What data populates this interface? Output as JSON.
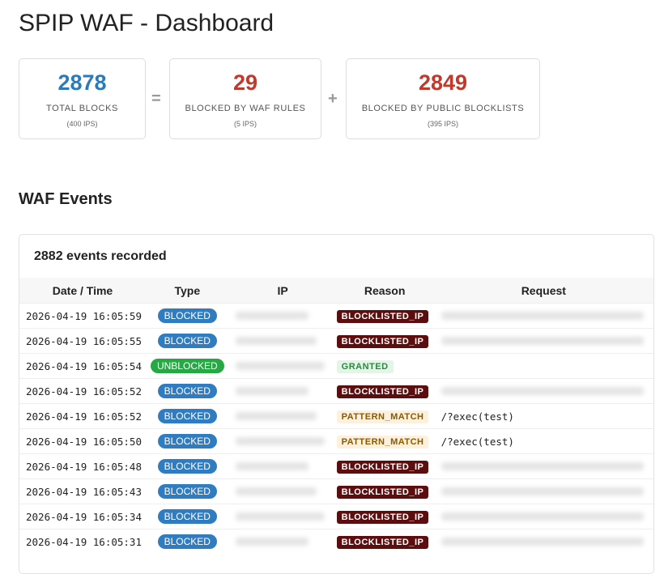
{
  "header": {
    "title": "SPIP WAF - Dashboard"
  },
  "stats": [
    {
      "value": 2878,
      "label": "TOTAL BLOCKS",
      "sub": "(400 IPS)",
      "color": "#2b7bb9"
    },
    {
      "value": 29,
      "label": "BLOCKED BY WAF RULES",
      "sub": "(5 IPS)",
      "color": "#c0392b"
    },
    {
      "value": 2849,
      "label": "BLOCKED BY PUBLIC BLOCKLISTS",
      "sub": "(395 IPS)",
      "color": "#c0392b"
    }
  ],
  "operators": [
    "=",
    "+"
  ],
  "events": {
    "title": "WAF Events",
    "count_label": "2882 events recorded",
    "columns": [
      "Date / Time",
      "Type",
      "IP",
      "Reason",
      "Request"
    ],
    "rows": [
      {
        "date": "2026-04-19 16:05:59",
        "type": {
          "text": "BLOCKED",
          "color": "#2f7dc0"
        },
        "reason": {
          "text": "BLOCKLISTED_IP",
          "bg": "#5c0d0d",
          "fg": "#ffffff"
        },
        "request": null
      },
      {
        "date": "2026-04-19 16:05:55",
        "type": {
          "text": "BLOCKED",
          "color": "#2f7dc0"
        },
        "reason": {
          "text": "BLOCKLISTED_IP",
          "bg": "#5c0d0d",
          "fg": "#ffffff"
        },
        "request": null
      },
      {
        "date": "2026-04-19 16:05:54",
        "type": {
          "text": "UNBLOCKED",
          "color": "#28a745"
        },
        "reason": {
          "text": "GRANTED",
          "bg": "#e2f5e6",
          "fg": "#2a8a3c"
        },
        "request": null
      },
      {
        "date": "2026-04-19 16:05:52",
        "type": {
          "text": "BLOCKED",
          "color": "#2f7dc0"
        },
        "reason": {
          "text": "BLOCKLISTED_IP",
          "bg": "#5c0d0d",
          "fg": "#ffffff"
        },
        "request": null
      },
      {
        "date": "2026-04-19 16:05:52",
        "type": {
          "text": "BLOCKED",
          "color": "#2f7dc0"
        },
        "reason": {
          "text": "PATTERN_MATCH",
          "bg": "#fdf0dc",
          "fg": "#8a5a00"
        },
        "request": "/?exec(test)"
      },
      {
        "date": "2026-04-19 16:05:50",
        "type": {
          "text": "BLOCKED",
          "color": "#2f7dc0"
        },
        "reason": {
          "text": "PATTERN_MATCH",
          "bg": "#fdf0dc",
          "fg": "#8a5a00"
        },
        "request": "/?exec(test)"
      },
      {
        "date": "2026-04-19 16:05:48",
        "type": {
          "text": "BLOCKED",
          "color": "#2f7dc0"
        },
        "reason": {
          "text": "BLOCKLISTED_IP",
          "bg": "#5c0d0d",
          "fg": "#ffffff"
        },
        "request": null
      },
      {
        "date": "2026-04-19 16:05:43",
        "type": {
          "text": "BLOCKED",
          "color": "#2f7dc0"
        },
        "reason": {
          "text": "BLOCKLISTED_IP",
          "bg": "#5c0d0d",
          "fg": "#ffffff"
        },
        "request": null
      },
      {
        "date": "2026-04-19 16:05:34",
        "type": {
          "text": "BLOCKED",
          "color": "#2f7dc0"
        },
        "reason": {
          "text": "BLOCKLISTED_IP",
          "bg": "#5c0d0d",
          "fg": "#ffffff"
        },
        "request": null
      },
      {
        "date": "2026-04-19 16:05:31",
        "type": {
          "text": "BLOCKED",
          "color": "#2f7dc0"
        },
        "reason": {
          "text": "BLOCKLISTED_IP",
          "bg": "#5c0d0d",
          "fg": "#ffffff"
        },
        "request": null
      }
    ]
  }
}
